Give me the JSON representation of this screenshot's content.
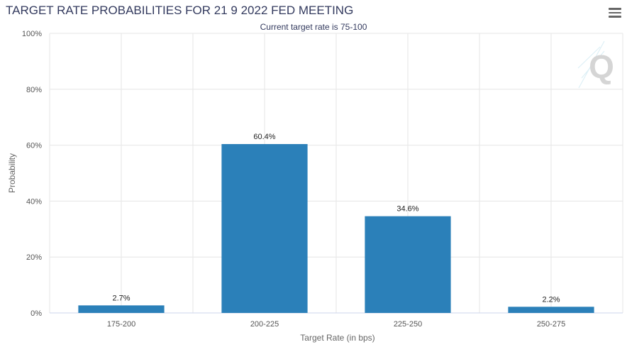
{
  "chart_data": {
    "type": "bar",
    "title": "TARGET RATE PROBABILITIES FOR 21 9 2022 FED MEETING",
    "subtitle": "Current target rate is 75-100",
    "categories": [
      "175-200",
      "200-225",
      "225-250",
      "250-275"
    ],
    "values": [
      2.7,
      60.4,
      34.6,
      2.2
    ],
    "value_labels": [
      "2.7%",
      "60.4%",
      "34.6%",
      "2.2%"
    ],
    "xlabel": "Target Rate (in bps)",
    "ylabel": "Probability",
    "ylim": [
      0,
      100
    ],
    "yticks": [
      0,
      20,
      40,
      60,
      80,
      100
    ],
    "ytick_labels": [
      "0%",
      "20%",
      "40%",
      "60%",
      "80%",
      "100%"
    ],
    "grid": true,
    "bar_color": "#2b80b9"
  },
  "menu": {
    "icon": "hamburger-menu-icon"
  },
  "watermark": {
    "icon": "q-logo-icon"
  }
}
